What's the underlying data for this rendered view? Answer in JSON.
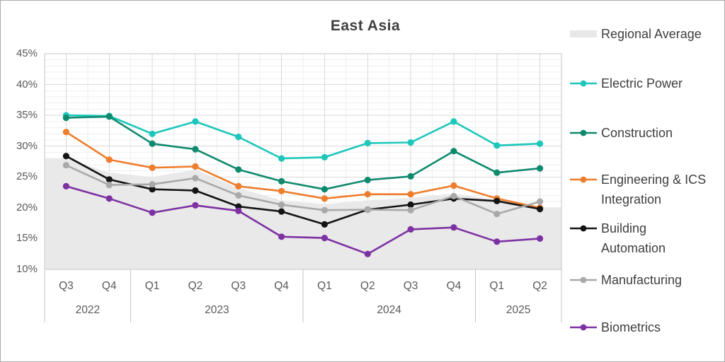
{
  "title": "East Asia",
  "y_axis": {
    "tick_labels": [
      "45%",
      "40%",
      "35%",
      "30%",
      "25%",
      "20%",
      "15%",
      "10%"
    ],
    "min": 10,
    "max": 45,
    "minor_step_pct": 1,
    "major_step_pct": 5
  },
  "x_axis": {
    "quarter_labels": [
      "Q3",
      "Q4",
      "Q1",
      "Q2",
      "Q3",
      "Q4",
      "Q1",
      "Q2",
      "Q3",
      "Q4",
      "Q1",
      "Q2"
    ],
    "year_groups": [
      {
        "label": "2022",
        "quarters": 2
      },
      {
        "label": "2023",
        "quarters": 4
      },
      {
        "label": "2024",
        "quarters": 4
      },
      {
        "label": "2025",
        "quarters": 2
      }
    ]
  },
  "legend": [
    {
      "label": "Regional Average",
      "marker": "area",
      "color": "#e8e8e8"
    },
    {
      "label": "Electric Power",
      "marker": "line",
      "color": "#1cc7bb"
    },
    {
      "label": "Construction",
      "marker": "line",
      "color": "#0f8a6e"
    },
    {
      "label": "Engineering & ICS\nIntegration",
      "marker": "line",
      "color": "#ee7d2c"
    },
    {
      "label": "Building\nAutomation",
      "marker": "line",
      "color": "#141414"
    },
    {
      "label": "Manufacturing",
      "marker": "line",
      "color": "#a9a9a9"
    },
    {
      "label": "Biometrics",
      "marker": "line",
      "color": "#7d31a3"
    }
  ],
  "chart_data": {
    "type": "line",
    "title": "East Asia",
    "unit": "%",
    "ylim": [
      10,
      45
    ],
    "grid": "minor 1%, major 5%",
    "legend_position": "right",
    "categories": [
      "2022 Q3",
      "2022 Q4",
      "2023 Q1",
      "2023 Q2",
      "2023 Q3",
      "2023 Q4",
      "2024 Q1",
      "2024 Q2",
      "2024 Q3",
      "2024 Q4",
      "2025 Q1",
      "2025 Q2"
    ],
    "series": [
      {
        "name": "Regional Average",
        "type": "area",
        "color": "#e9e9e9",
        "values": [
          28.0,
          25.7,
          25.0,
          26.2,
          23.2,
          21.2,
          20.6,
          21.2,
          21.6,
          22.3,
          21.3,
          19.9
        ]
      },
      {
        "name": "Electric Power",
        "type": "line",
        "color": "#1cc7bb",
        "values": [
          35.0,
          34.9,
          32.0,
          34.0,
          31.5,
          28.0,
          28.2,
          30.5,
          30.6,
          34.0,
          30.1,
          30.4
        ]
      },
      {
        "name": "Construction",
        "type": "line",
        "color": "#0f8a6e",
        "values": [
          34.6,
          34.8,
          30.4,
          29.5,
          26.2,
          24.3,
          23.0,
          24.5,
          25.1,
          29.2,
          25.7,
          26.4
        ]
      },
      {
        "name": "Engineering & ICS Integration",
        "type": "line",
        "color": "#ee7d2c",
        "values": [
          32.3,
          27.8,
          26.5,
          26.7,
          23.5,
          22.7,
          21.5,
          22.2,
          22.2,
          23.6,
          21.5,
          20.0
        ]
      },
      {
        "name": "Building Automation",
        "type": "line",
        "color": "#141414",
        "values": [
          28.4,
          24.6,
          23.0,
          22.8,
          20.2,
          19.4,
          17.3,
          19.7,
          20.5,
          21.5,
          21.1,
          19.8
        ]
      },
      {
        "name": "Manufacturing",
        "type": "line",
        "color": "#a9a9a9",
        "values": [
          26.9,
          23.7,
          23.8,
          24.8,
          22.0,
          20.5,
          19.6,
          19.7,
          19.6,
          21.9,
          19.0,
          21.0
        ]
      },
      {
        "name": "Biometrics",
        "type": "line",
        "color": "#7d31a3",
        "values": [
          23.5,
          21.5,
          19.2,
          20.4,
          19.5,
          15.3,
          15.1,
          12.5,
          16.5,
          16.8,
          14.5,
          15.0
        ]
      }
    ]
  },
  "colors": {
    "background": "#ffffff",
    "plot_border": "#c6c6c6",
    "grid_minor": "#efefef",
    "grid_major": "#d9d9d9",
    "axis_text": "#595959",
    "title_text": "#3f3f3f",
    "legend_text": "#3e3e3e",
    "area_fill": "#e9e9e9"
  }
}
